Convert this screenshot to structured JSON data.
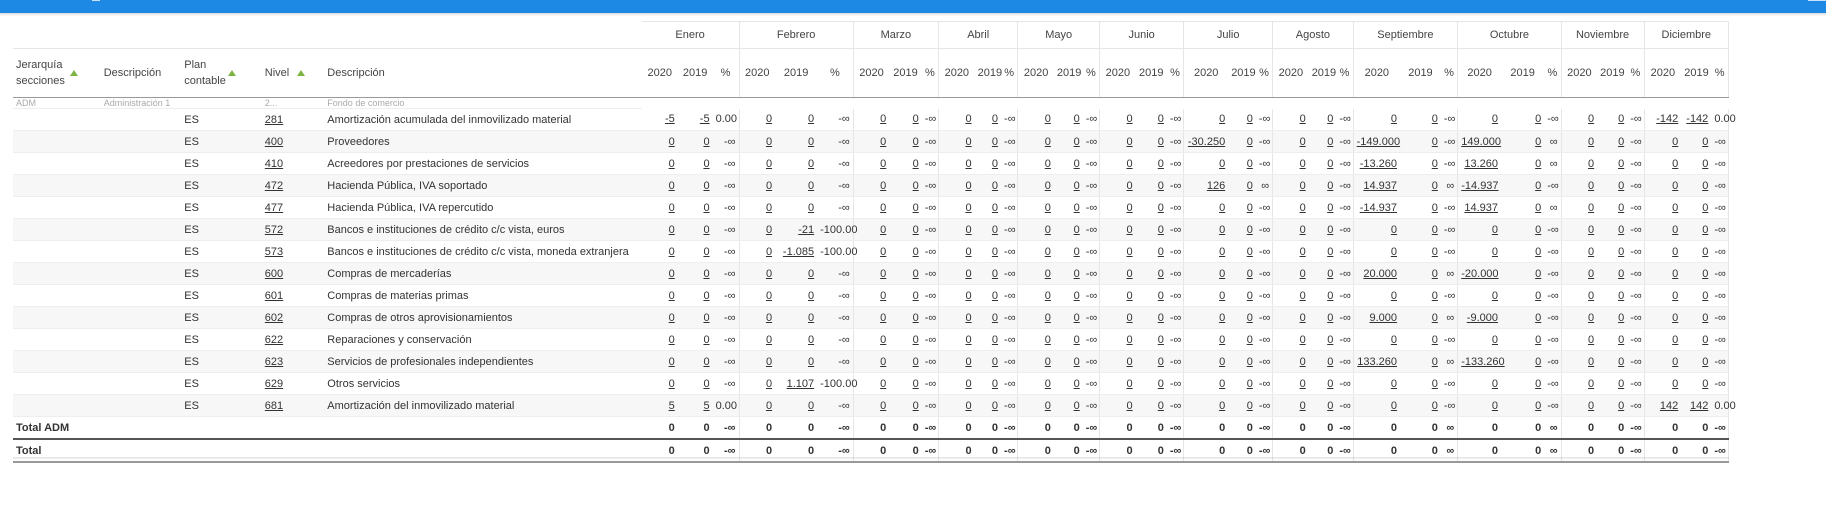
{
  "headers": {
    "jerarquia": "Jerarquía secciones",
    "descripcion1": "Descripción",
    "plan": "Plan contable",
    "nivel": "Nivel",
    "descripcion2": "Descripción",
    "y2020": "2020",
    "y2019": "2019",
    "pct": "%"
  },
  "months": [
    "Enero",
    "Febrero",
    "Marzo",
    "Abril",
    "Mayo",
    "Junio",
    "Julio",
    "Agosto",
    "Septiembre",
    "Octubre",
    "Noviembre",
    "Diciembre"
  ],
  "partial_row": {
    "seccion": "ADM",
    "desc": "Administración 1",
    "nivel": "2...",
    "cuenta": "Fondo de comercio"
  },
  "rows": [
    {
      "plan": "ES",
      "nivel": "281",
      "desc": "Amortización acumulada del inmovilizado material",
      "v": [
        [
          "-5",
          "-5",
          "0.00"
        ],
        [
          "0",
          "0",
          "-∞"
        ],
        [
          "0",
          "0",
          "-∞"
        ],
        [
          "0",
          "0",
          "-∞"
        ],
        [
          "0",
          "0",
          "-∞"
        ],
        [
          "0",
          "0",
          "-∞"
        ],
        [
          "0",
          "0",
          "-∞"
        ],
        [
          "0",
          "0",
          "-∞"
        ],
        [
          "0",
          "0",
          "-∞"
        ],
        [
          "0",
          "0",
          "-∞"
        ],
        [
          "0",
          "0",
          "-∞"
        ],
        [
          "-142",
          "-142",
          "0.00"
        ]
      ]
    },
    {
      "plan": "ES",
      "nivel": "400",
      "desc": "Proveedores",
      "v": [
        [
          "0",
          "0",
          "-∞"
        ],
        [
          "0",
          "0",
          "-∞"
        ],
        [
          "0",
          "0",
          "-∞"
        ],
        [
          "0",
          "0",
          "-∞"
        ],
        [
          "0",
          "0",
          "-∞"
        ],
        [
          "0",
          "0",
          "-∞"
        ],
        [
          "-30.250",
          "0",
          "-∞"
        ],
        [
          "0",
          "0",
          "-∞"
        ],
        [
          "-149.000",
          "0",
          "-∞"
        ],
        [
          "149.000",
          "0",
          "∞"
        ],
        [
          "0",
          "0",
          "-∞"
        ],
        [
          "0",
          "0",
          "-∞"
        ]
      ]
    },
    {
      "plan": "ES",
      "nivel": "410",
      "desc": "Acreedores por prestaciones de servicios",
      "v": [
        [
          "0",
          "0",
          "-∞"
        ],
        [
          "0",
          "0",
          "-∞"
        ],
        [
          "0",
          "0",
          "-∞"
        ],
        [
          "0",
          "0",
          "-∞"
        ],
        [
          "0",
          "0",
          "-∞"
        ],
        [
          "0",
          "0",
          "-∞"
        ],
        [
          "0",
          "0",
          "-∞"
        ],
        [
          "0",
          "0",
          "-∞"
        ],
        [
          "-13.260",
          "0",
          "-∞"
        ],
        [
          "13.260",
          "0",
          "∞"
        ],
        [
          "0",
          "0",
          "-∞"
        ],
        [
          "0",
          "0",
          "-∞"
        ]
      ]
    },
    {
      "plan": "ES",
      "nivel": "472",
      "desc": "Hacienda Pública, IVA soportado",
      "v": [
        [
          "0",
          "0",
          "-∞"
        ],
        [
          "0",
          "0",
          "-∞"
        ],
        [
          "0",
          "0",
          "-∞"
        ],
        [
          "0",
          "0",
          "-∞"
        ],
        [
          "0",
          "0",
          "-∞"
        ],
        [
          "0",
          "0",
          "-∞"
        ],
        [
          "126",
          "0",
          "∞"
        ],
        [
          "0",
          "0",
          "-∞"
        ],
        [
          "14.937",
          "0",
          "∞"
        ],
        [
          "-14.937",
          "0",
          "-∞"
        ],
        [
          "0",
          "0",
          "-∞"
        ],
        [
          "0",
          "0",
          "-∞"
        ]
      ]
    },
    {
      "plan": "ES",
      "nivel": "477",
      "desc": "Hacienda Pública, IVA repercutido",
      "v": [
        [
          "0",
          "0",
          "-∞"
        ],
        [
          "0",
          "0",
          "-∞"
        ],
        [
          "0",
          "0",
          "-∞"
        ],
        [
          "0",
          "0",
          "-∞"
        ],
        [
          "0",
          "0",
          "-∞"
        ],
        [
          "0",
          "0",
          "-∞"
        ],
        [
          "0",
          "0",
          "-∞"
        ],
        [
          "0",
          "0",
          "-∞"
        ],
        [
          "-14.937",
          "0",
          "-∞"
        ],
        [
          "14.937",
          "0",
          "∞"
        ],
        [
          "0",
          "0",
          "-∞"
        ],
        [
          "0",
          "0",
          "-∞"
        ]
      ]
    },
    {
      "plan": "ES",
      "nivel": "572",
      "desc": "Bancos e instituciones de crédito c/c vista, euros",
      "v": [
        [
          "0",
          "0",
          "-∞"
        ],
        [
          "0",
          "-21",
          "-100.00"
        ],
        [
          "0",
          "0",
          "-∞"
        ],
        [
          "0",
          "0",
          "-∞"
        ],
        [
          "0",
          "0",
          "-∞"
        ],
        [
          "0",
          "0",
          "-∞"
        ],
        [
          "0",
          "0",
          "-∞"
        ],
        [
          "0",
          "0",
          "-∞"
        ],
        [
          "0",
          "0",
          "-∞"
        ],
        [
          "0",
          "0",
          "-∞"
        ],
        [
          "0",
          "0",
          "-∞"
        ],
        [
          "0",
          "0",
          "-∞"
        ]
      ]
    },
    {
      "plan": "ES",
      "nivel": "573",
      "desc": "Bancos e instituciones de crédito c/c vista, moneda extranjera",
      "v": [
        [
          "0",
          "0",
          "-∞"
        ],
        [
          "0",
          "-1.085",
          "-100.00"
        ],
        [
          "0",
          "0",
          "-∞"
        ],
        [
          "0",
          "0",
          "-∞"
        ],
        [
          "0",
          "0",
          "-∞"
        ],
        [
          "0",
          "0",
          "-∞"
        ],
        [
          "0",
          "0",
          "-∞"
        ],
        [
          "0",
          "0",
          "-∞"
        ],
        [
          "0",
          "0",
          "-∞"
        ],
        [
          "0",
          "0",
          "-∞"
        ],
        [
          "0",
          "0",
          "-∞"
        ],
        [
          "0",
          "0",
          "-∞"
        ]
      ]
    },
    {
      "plan": "ES",
      "nivel": "600",
      "desc": "Compras de mercaderías",
      "v": [
        [
          "0",
          "0",
          "-∞"
        ],
        [
          "0",
          "0",
          "-∞"
        ],
        [
          "0",
          "0",
          "-∞"
        ],
        [
          "0",
          "0",
          "-∞"
        ],
        [
          "0",
          "0",
          "-∞"
        ],
        [
          "0",
          "0",
          "-∞"
        ],
        [
          "0",
          "0",
          "-∞"
        ],
        [
          "0",
          "0",
          "-∞"
        ],
        [
          "20.000",
          "0",
          "∞"
        ],
        [
          "-20.000",
          "0",
          "-∞"
        ],
        [
          "0",
          "0",
          "-∞"
        ],
        [
          "0",
          "0",
          "-∞"
        ]
      ]
    },
    {
      "plan": "ES",
      "nivel": "601",
      "desc": "Compras de materias primas",
      "v": [
        [
          "0",
          "0",
          "-∞"
        ],
        [
          "0",
          "0",
          "-∞"
        ],
        [
          "0",
          "0",
          "-∞"
        ],
        [
          "0",
          "0",
          "-∞"
        ],
        [
          "0",
          "0",
          "-∞"
        ],
        [
          "0",
          "0",
          "-∞"
        ],
        [
          "0",
          "0",
          "-∞"
        ],
        [
          "0",
          "0",
          "-∞"
        ],
        [
          "0",
          "0",
          "-∞"
        ],
        [
          "0",
          "0",
          "-∞"
        ],
        [
          "0",
          "0",
          "-∞"
        ],
        [
          "0",
          "0",
          "-∞"
        ]
      ]
    },
    {
      "plan": "ES",
      "nivel": "602",
      "desc": "Compras de otros aprovisionamientos",
      "v": [
        [
          "0",
          "0",
          "-∞"
        ],
        [
          "0",
          "0",
          "-∞"
        ],
        [
          "0",
          "0",
          "-∞"
        ],
        [
          "0",
          "0",
          "-∞"
        ],
        [
          "0",
          "0",
          "-∞"
        ],
        [
          "0",
          "0",
          "-∞"
        ],
        [
          "0",
          "0",
          "-∞"
        ],
        [
          "0",
          "0",
          "-∞"
        ],
        [
          "9.000",
          "0",
          "∞"
        ],
        [
          "-9.000",
          "0",
          "-∞"
        ],
        [
          "0",
          "0",
          "-∞"
        ],
        [
          "0",
          "0",
          "-∞"
        ]
      ]
    },
    {
      "plan": "ES",
      "nivel": "622",
      "desc": "Reparaciones y conservación",
      "v": [
        [
          "0",
          "0",
          "-∞"
        ],
        [
          "0",
          "0",
          "-∞"
        ],
        [
          "0",
          "0",
          "-∞"
        ],
        [
          "0",
          "0",
          "-∞"
        ],
        [
          "0",
          "0",
          "-∞"
        ],
        [
          "0",
          "0",
          "-∞"
        ],
        [
          "0",
          "0",
          "-∞"
        ],
        [
          "0",
          "0",
          "-∞"
        ],
        [
          "0",
          "0",
          "-∞"
        ],
        [
          "0",
          "0",
          "-∞"
        ],
        [
          "0",
          "0",
          "-∞"
        ],
        [
          "0",
          "0",
          "-∞"
        ]
      ]
    },
    {
      "plan": "ES",
      "nivel": "623",
      "desc": "Servicios de profesionales independientes",
      "v": [
        [
          "0",
          "0",
          "-∞"
        ],
        [
          "0",
          "0",
          "-∞"
        ],
        [
          "0",
          "0",
          "-∞"
        ],
        [
          "0",
          "0",
          "-∞"
        ],
        [
          "0",
          "0",
          "-∞"
        ],
        [
          "0",
          "0",
          "-∞"
        ],
        [
          "0",
          "0",
          "-∞"
        ],
        [
          "0",
          "0",
          "-∞"
        ],
        [
          "133.260",
          "0",
          "∞"
        ],
        [
          "-133.260",
          "0",
          "-∞"
        ],
        [
          "0",
          "0",
          "-∞"
        ],
        [
          "0",
          "0",
          "-∞"
        ]
      ]
    },
    {
      "plan": "ES",
      "nivel": "629",
      "desc": "Otros servicios",
      "v": [
        [
          "0",
          "0",
          "-∞"
        ],
        [
          "0",
          "1.107",
          "-100.00"
        ],
        [
          "0",
          "0",
          "-∞"
        ],
        [
          "0",
          "0",
          "-∞"
        ],
        [
          "0",
          "0",
          "-∞"
        ],
        [
          "0",
          "0",
          "-∞"
        ],
        [
          "0",
          "0",
          "-∞"
        ],
        [
          "0",
          "0",
          "-∞"
        ],
        [
          "0",
          "0",
          "-∞"
        ],
        [
          "0",
          "0",
          "-∞"
        ],
        [
          "0",
          "0",
          "-∞"
        ],
        [
          "0",
          "0",
          "-∞"
        ]
      ]
    },
    {
      "plan": "ES",
      "nivel": "681",
      "desc": "Amortización del inmovilizado material",
      "v": [
        [
          "5",
          "5",
          "0.00"
        ],
        [
          "0",
          "0",
          "-∞"
        ],
        [
          "0",
          "0",
          "-∞"
        ],
        [
          "0",
          "0",
          "-∞"
        ],
        [
          "0",
          "0",
          "-∞"
        ],
        [
          "0",
          "0",
          "-∞"
        ],
        [
          "0",
          "0",
          "-∞"
        ],
        [
          "0",
          "0",
          "-∞"
        ],
        [
          "0",
          "0",
          "-∞"
        ],
        [
          "0",
          "0",
          "-∞"
        ],
        [
          "0",
          "0",
          "-∞"
        ],
        [
          "142",
          "142",
          "0.00"
        ]
      ]
    }
  ],
  "totals": [
    {
      "label": "Total ADM",
      "v": [
        [
          "0",
          "0",
          "-∞"
        ],
        [
          "0",
          "0",
          "-∞"
        ],
        [
          "0",
          "0",
          "-∞"
        ],
        [
          "0",
          "0",
          "-∞"
        ],
        [
          "0",
          "0",
          "-∞"
        ],
        [
          "0",
          "0",
          "-∞"
        ],
        [
          "0",
          "0",
          "-∞"
        ],
        [
          "0",
          "0",
          "-∞"
        ],
        [
          "0",
          "0",
          "∞"
        ],
        [
          "0",
          "0",
          "∞"
        ],
        [
          "0",
          "0",
          "-∞"
        ],
        [
          "0",
          "0",
          "-∞"
        ]
      ]
    },
    {
      "label": "Total",
      "v": [
        [
          "0",
          "0",
          "-∞"
        ],
        [
          "0",
          "0",
          "-∞"
        ],
        [
          "0",
          "0",
          "-∞"
        ],
        [
          "0",
          "0",
          "-∞"
        ],
        [
          "0",
          "0",
          "-∞"
        ],
        [
          "0",
          "0",
          "-∞"
        ],
        [
          "0",
          "0",
          "-∞"
        ],
        [
          "0",
          "0",
          "-∞"
        ],
        [
          "0",
          "0",
          "∞"
        ],
        [
          "0",
          "0",
          "∞"
        ],
        [
          "0",
          "0",
          "-∞"
        ],
        [
          "0",
          "0",
          "-∞"
        ]
      ]
    }
  ]
}
